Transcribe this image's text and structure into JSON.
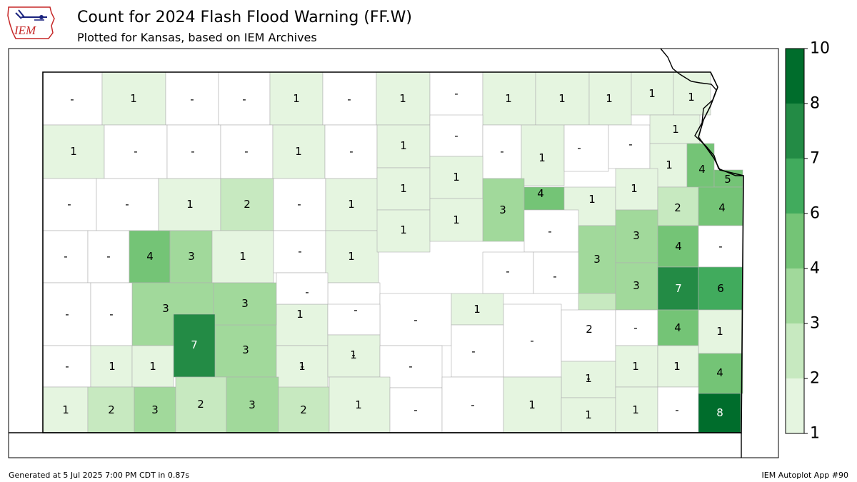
{
  "header": {
    "title": "Count for 2024 Flash Flood Warning (FF.W)",
    "subtitle": "Plotted for Kansas, based on IEM Archives",
    "logo_text": "IEM"
  },
  "footer": {
    "generated": "Generated at 5 Jul 2025 7:00 PM CDT in 0.87s",
    "app": "IEM Autoplot App #90"
  },
  "legend": {
    "ticks": [
      "1",
      "2",
      "3",
      "4",
      "6",
      "7",
      "8",
      "10"
    ],
    "colors": [
      "#e5f5e0",
      "#c7e9c0",
      "#a1d99b",
      "#74c476",
      "#41ab5d",
      "#238b45",
      "#006d2c"
    ]
  },
  "counties": [
    {
      "label": "-",
      "value": 0
    },
    {
      "label": "1",
      "value": 1
    },
    {
      "label": "-",
      "value": 0
    },
    {
      "label": "-",
      "value": 0
    },
    {
      "label": "1",
      "value": 1
    },
    {
      "label": "-",
      "value": 0
    },
    {
      "label": "1",
      "value": 1
    },
    {
      "label": "-",
      "value": 0
    },
    {
      "label": "1",
      "value": 1
    },
    {
      "label": "1",
      "value": 1
    },
    {
      "label": "1",
      "value": 1
    },
    {
      "label": "1",
      "value": 1
    },
    {
      "label": "1",
      "value": 1
    },
    {
      "label": "1",
      "value": 1
    },
    {
      "label": "-",
      "value": 0
    },
    {
      "label": "-",
      "value": 0
    },
    {
      "label": "-",
      "value": 0
    },
    {
      "label": "1",
      "value": 1
    },
    {
      "label": "-",
      "value": 0
    },
    {
      "label": "1",
      "value": 1
    },
    {
      "label": "-",
      "value": 0
    },
    {
      "label": "-",
      "value": 0
    },
    {
      "label": "1",
      "value": 1
    },
    {
      "label": "-",
      "value": 0
    },
    {
      "label": "-",
      "value": 0
    },
    {
      "label": "1",
      "value": 1
    },
    {
      "label": "1",
      "value": 1
    },
    {
      "label": "4",
      "value": 4
    },
    {
      "label": "5",
      "value": 5
    },
    {
      "label": "-",
      "value": 0
    },
    {
      "label": "-",
      "value": 0
    },
    {
      "label": "1",
      "value": 1
    },
    {
      "label": "2",
      "value": 2
    },
    {
      "label": "-",
      "value": 0
    },
    {
      "label": "1",
      "value": 1
    },
    {
      "label": "1",
      "value": 1
    },
    {
      "label": "1",
      "value": 1
    },
    {
      "label": "3",
      "value": 3
    },
    {
      "label": "4",
      "value": 4
    },
    {
      "label": "1",
      "value": 1
    },
    {
      "label": "1",
      "value": 1
    },
    {
      "label": "2",
      "value": 2
    },
    {
      "label": "4",
      "value": 4
    },
    {
      "label": "-",
      "value": 0
    },
    {
      "label": "-",
      "value": 0
    },
    {
      "label": "4",
      "value": 4
    },
    {
      "label": "3",
      "value": 3
    },
    {
      "label": "1",
      "value": 1
    },
    {
      "label": "-",
      "value": 0
    },
    {
      "label": "1",
      "value": 1
    },
    {
      "label": "1",
      "value": 1
    },
    {
      "label": "1",
      "value": 1
    },
    {
      "label": "-",
      "value": 0
    },
    {
      "label": "3",
      "value": 3
    },
    {
      "label": "3",
      "value": 3
    },
    {
      "label": "4",
      "value": 4
    },
    {
      "label": "-",
      "value": 0
    },
    {
      "label": "-",
      "value": 0
    },
    {
      "label": "3",
      "value": 3
    },
    {
      "label": "3",
      "value": 3
    },
    {
      "label": "1",
      "value": 1
    },
    {
      "label": "-",
      "value": 0
    },
    {
      "label": "-",
      "value": 0
    },
    {
      "label": "1",
      "value": 1
    },
    {
      "label": "-",
      "value": 0
    },
    {
      "label": "-",
      "value": 0
    },
    {
      "label": "2",
      "value": 2
    },
    {
      "label": "3",
      "value": 3
    },
    {
      "label": "7",
      "value": 7
    },
    {
      "label": "6",
      "value": 6
    },
    {
      "label": "-",
      "value": 0
    },
    {
      "label": "3",
      "value": 3
    },
    {
      "label": "7",
      "value": 7
    },
    {
      "label": "-",
      "value": 0
    },
    {
      "label": "-",
      "value": 0
    },
    {
      "label": "-",
      "value": 0
    },
    {
      "label": "-",
      "value": 0
    },
    {
      "label": "-",
      "value": 0
    },
    {
      "label": "-",
      "value": 0
    },
    {
      "label": "-",
      "value": 0
    },
    {
      "label": "4",
      "value": 4
    },
    {
      "label": "1",
      "value": 1
    },
    {
      "label": "-",
      "value": 0
    },
    {
      "label": "1",
      "value": 1
    },
    {
      "label": "1",
      "value": 1
    },
    {
      "label": "1",
      "value": 1
    },
    {
      "label": "1",
      "value": 1
    },
    {
      "label": "-",
      "value": 0
    },
    {
      "label": "1",
      "value": 1
    },
    {
      "label": "1",
      "value": 1
    },
    {
      "label": "1",
      "value": 1
    },
    {
      "label": "4",
      "value": 4
    },
    {
      "label": "1",
      "value": 1
    },
    {
      "label": "2",
      "value": 2
    },
    {
      "label": "3",
      "value": 3
    },
    {
      "label": "2",
      "value": 2
    },
    {
      "label": "3",
      "value": 3
    },
    {
      "label": "2",
      "value": 2
    },
    {
      "label": "1",
      "value": 1
    },
    {
      "label": "-",
      "value": 0
    },
    {
      "label": "-",
      "value": 0
    },
    {
      "label": "1",
      "value": 1
    },
    {
      "label": "1",
      "value": 1
    },
    {
      "label": "1",
      "value": 1
    },
    {
      "label": "-",
      "value": 0
    },
    {
      "label": "8",
      "value": 8
    }
  ]
}
